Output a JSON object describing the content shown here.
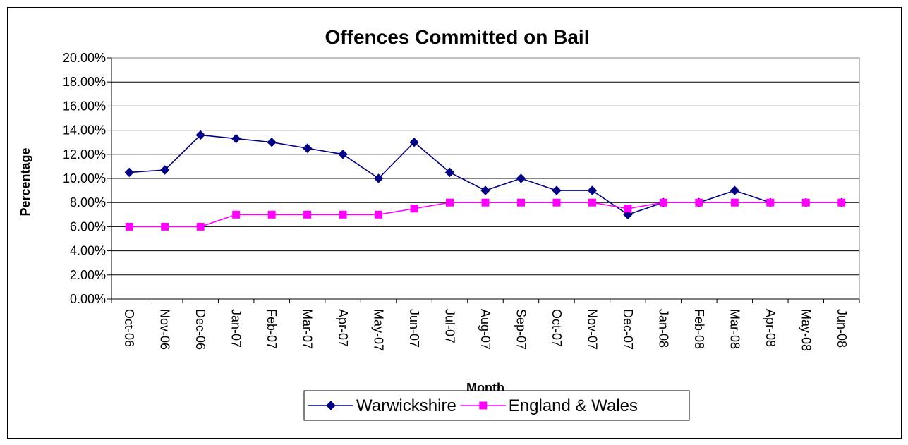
{
  "chart_data": {
    "type": "line",
    "title": "Offences Committed on Bail",
    "xlabel": "Month",
    "ylabel": "Percentage",
    "ylim": [
      0,
      20
    ],
    "ytick_step": 2,
    "ytick_format": "percent-2dp",
    "grid": "horizontal",
    "legend_position": "bottom",
    "categories": [
      "Oct-06",
      "Nov-06",
      "Dec-06",
      "Jan-07",
      "Feb-07",
      "Mar-07",
      "Apr-07",
      "May-07",
      "Jun-07",
      "Jul-07",
      "Aug-07",
      "Sep-07",
      "Oct-07",
      "Nov-07",
      "Dec-07",
      "Jan-08",
      "Feb-08",
      "Mar-08",
      "Apr-08",
      "May-08",
      "Jun-08"
    ],
    "series": [
      {
        "name": "Warwickshire",
        "color": "#000080",
        "marker": "diamond",
        "values": [
          10.5,
          10.7,
          13.6,
          13.3,
          13.0,
          12.5,
          12.0,
          10.0,
          13.0,
          10.5,
          9.0,
          10.0,
          9.0,
          9.0,
          7.0,
          8.0,
          8.0,
          9.0,
          8.0,
          8.0,
          8.0
        ]
      },
      {
        "name": "England & Wales",
        "color": "#FF00FF",
        "marker": "square",
        "values": [
          6.0,
          6.0,
          6.0,
          7.0,
          7.0,
          7.0,
          7.0,
          7.0,
          7.5,
          8.0,
          8.0,
          8.0,
          8.0,
          8.0,
          7.5,
          8.0,
          8.0,
          8.0,
          8.0,
          8.0,
          8.0
        ]
      }
    ]
  }
}
